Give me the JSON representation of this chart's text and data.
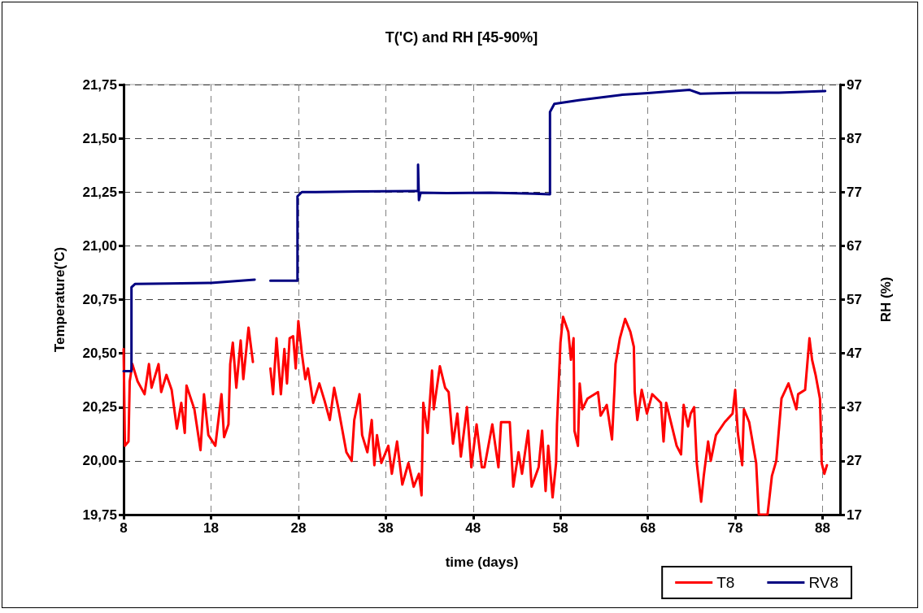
{
  "chart_data": {
    "type": "line",
    "title": "T('C) and RH [45-90%]",
    "xlabel": "time (days)",
    "ylabel": "Temperature('C)",
    "y2label": "RH (%)",
    "xlim": [
      8,
      90
    ],
    "xticks": [
      8,
      18,
      28,
      38,
      48,
      58,
      68,
      78,
      88
    ],
    "ylim": [
      19.75,
      21.75
    ],
    "yticks": [
      {
        "value": 19.75,
        "label": "19,75"
      },
      {
        "value": 20,
        "label": "20,00"
      },
      {
        "value": 20.25,
        "label": "20,25"
      },
      {
        "value": 20.5,
        "label": "20,50"
      },
      {
        "value": 20.75,
        "label": "20,75"
      },
      {
        "value": 21,
        "label": "21,00"
      },
      {
        "value": 21.25,
        "label": "21,25"
      },
      {
        "value": 21.5,
        "label": "21,50"
      },
      {
        "value": 21.75,
        "label": "21,75"
      }
    ],
    "y2lim": [
      17,
      97
    ],
    "y2ticks": [
      17,
      27,
      37,
      47,
      57,
      67,
      77,
      87,
      97
    ],
    "grid": true,
    "legend": "bottom right",
    "marker": "none",
    "line_style": "solid",
    "series": [
      {
        "name": "T8",
        "color": "#ff0000",
        "x": [
          8.0,
          8.15,
          8.56,
          8.7,
          9.0,
          9.6,
          10.4,
          10.9,
          11.2,
          12.0,
          12.3,
          12.9,
          13.5,
          14.1,
          14.6,
          15.0,
          15.2,
          16.1,
          16.8,
          17.2,
          17.7,
          18.5,
          19.2,
          19.5,
          20.0,
          20.2,
          20.5,
          20.9,
          21.4,
          21.7,
          22.3,
          22.8,
          23.8,
          24.8,
          25.1,
          25.5,
          26.0,
          26.4,
          26.7,
          27.0,
          27.4,
          27.7,
          28.0,
          28.4,
          28.8,
          29.1,
          29.7,
          30.4,
          31.0,
          31.6,
          32.1,
          32.6,
          33.5,
          34.1,
          34.4,
          35.0,
          35.3,
          35.9,
          36.4,
          36.7,
          37.0,
          37.5,
          38.3,
          38.7,
          39.3,
          39.9,
          40.6,
          41.2,
          41.8,
          42.1,
          42.3,
          42.8,
          43.3,
          43.5,
          44.2,
          44.8,
          45.2,
          45.7,
          46.2,
          46.6,
          47.3,
          47.8,
          48.4,
          49.0,
          49.3,
          50.2,
          50.9,
          51.2,
          52.2,
          52.6,
          53.2,
          53.6,
          54.3,
          54.7,
          55.5,
          55.9,
          56.3,
          56.6,
          57.1,
          57.5,
          57.6,
          58.0,
          58.3,
          58.9,
          59.2,
          59.5,
          59.6,
          60.0,
          60.2,
          60.5,
          61.1,
          62.3,
          62.6,
          63.3,
          63.9,
          64.2,
          64.3,
          64.8,
          65.4,
          66.0,
          66.4,
          66.5,
          66.8,
          67.3,
          67.9,
          68.5,
          69.5,
          69.8,
          70.1,
          70.7,
          71.3,
          71.8,
          72.1,
          72.6,
          72.9,
          73.3,
          73.6,
          74.1,
          74.4,
          74.9,
          75.2,
          75.8,
          76.8,
          77.7,
          78.0,
          78.3,
          78.8,
          79.0,
          79.6,
          80.4,
          80.7,
          81.7,
          82.2,
          82.7,
          83.3,
          84.1,
          85.0,
          85.2,
          86.0,
          86.5,
          86.8,
          87.2,
          87.7,
          87.9,
          88.2,
          88.5
        ],
        "values": [
          20.52,
          20.07,
          20.09,
          20.37,
          20.45,
          20.37,
          20.31,
          20.45,
          20.34,
          20.45,
          20.32,
          20.4,
          20.33,
          20.15,
          20.27,
          20.13,
          20.35,
          20.24,
          20.05,
          20.31,
          20.12,
          20.07,
          20.31,
          20.11,
          20.17,
          20.45,
          20.55,
          20.34,
          20.56,
          20.38,
          20.62,
          20.46,
          null,
          20.43,
          20.31,
          20.57,
          20.31,
          20.52,
          20.36,
          20.57,
          20.58,
          20.43,
          20.65,
          20.5,
          20.38,
          20.43,
          20.27,
          20.36,
          20.28,
          20.19,
          20.34,
          20.24,
          20.04,
          20.0,
          20.19,
          20.31,
          20.12,
          20.04,
          20.19,
          19.98,
          20.12,
          19.99,
          20.07,
          19.94,
          20.09,
          19.89,
          19.99,
          19.88,
          19.94,
          19.84,
          20.27,
          20.13,
          20.42,
          20.24,
          20.44,
          20.34,
          20.32,
          20.08,
          20.22,
          20.02,
          20.25,
          19.97,
          20.17,
          19.97,
          19.97,
          20.17,
          19.97,
          20.18,
          20.18,
          19.88,
          20.04,
          19.94,
          20.14,
          19.88,
          19.97,
          20.14,
          19.86,
          20.07,
          19.83,
          19.99,
          20.17,
          20.55,
          20.67,
          20.6,
          20.47,
          20.57,
          20.14,
          20.07,
          20.36,
          20.24,
          20.29,
          20.32,
          20.21,
          20.26,
          20.1,
          20.35,
          20.45,
          20.57,
          20.66,
          20.6,
          20.53,
          20.32,
          20.19,
          20.33,
          20.22,
          20.31,
          20.27,
          20.09,
          20.27,
          20.17,
          20.07,
          20.03,
          20.26,
          20.16,
          20.22,
          20.25,
          19.99,
          19.81,
          19.93,
          20.09,
          20.0,
          20.12,
          20.18,
          20.22,
          20.33,
          20.13,
          19.98,
          20.24,
          20.18,
          19.99,
          19.75,
          19.75,
          19.93,
          20.0,
          20.29,
          20.36,
          20.24,
          20.31,
          20.33,
          20.57,
          20.47,
          20.4,
          20.29,
          19.99,
          19.94,
          19.98
        ]
      },
      {
        "name": "RV8",
        "color": "#000080",
        "axis": "y2",
        "x": [
          8.0,
          8.9,
          8.9,
          9.3,
          13,
          18,
          23,
          23.9,
          24.8,
          27.9,
          27.9,
          28.4,
          30,
          35,
          41.7,
          41.7,
          41.8,
          42,
          45,
          50,
          55,
          56.8,
          56.8,
          57.3,
          60.1,
          65.1,
          68.0,
          72.8,
          74.0,
          78.7,
          83,
          88.3
        ],
        "values": [
          43.7,
          43.7,
          59.3,
          59.9,
          60.0,
          60.1,
          60.7,
          null,
          60.5,
          60.5,
          76.2,
          77.0,
          77.0,
          77.1,
          77.2,
          82.1,
          75.5,
          76.9,
          76.8,
          76.9,
          76.7,
          76.6,
          91.9,
          93.4,
          94.1,
          95.1,
          95.4,
          96.0,
          95.3,
          95.5,
          95.5,
          95.8
        ]
      }
    ]
  }
}
